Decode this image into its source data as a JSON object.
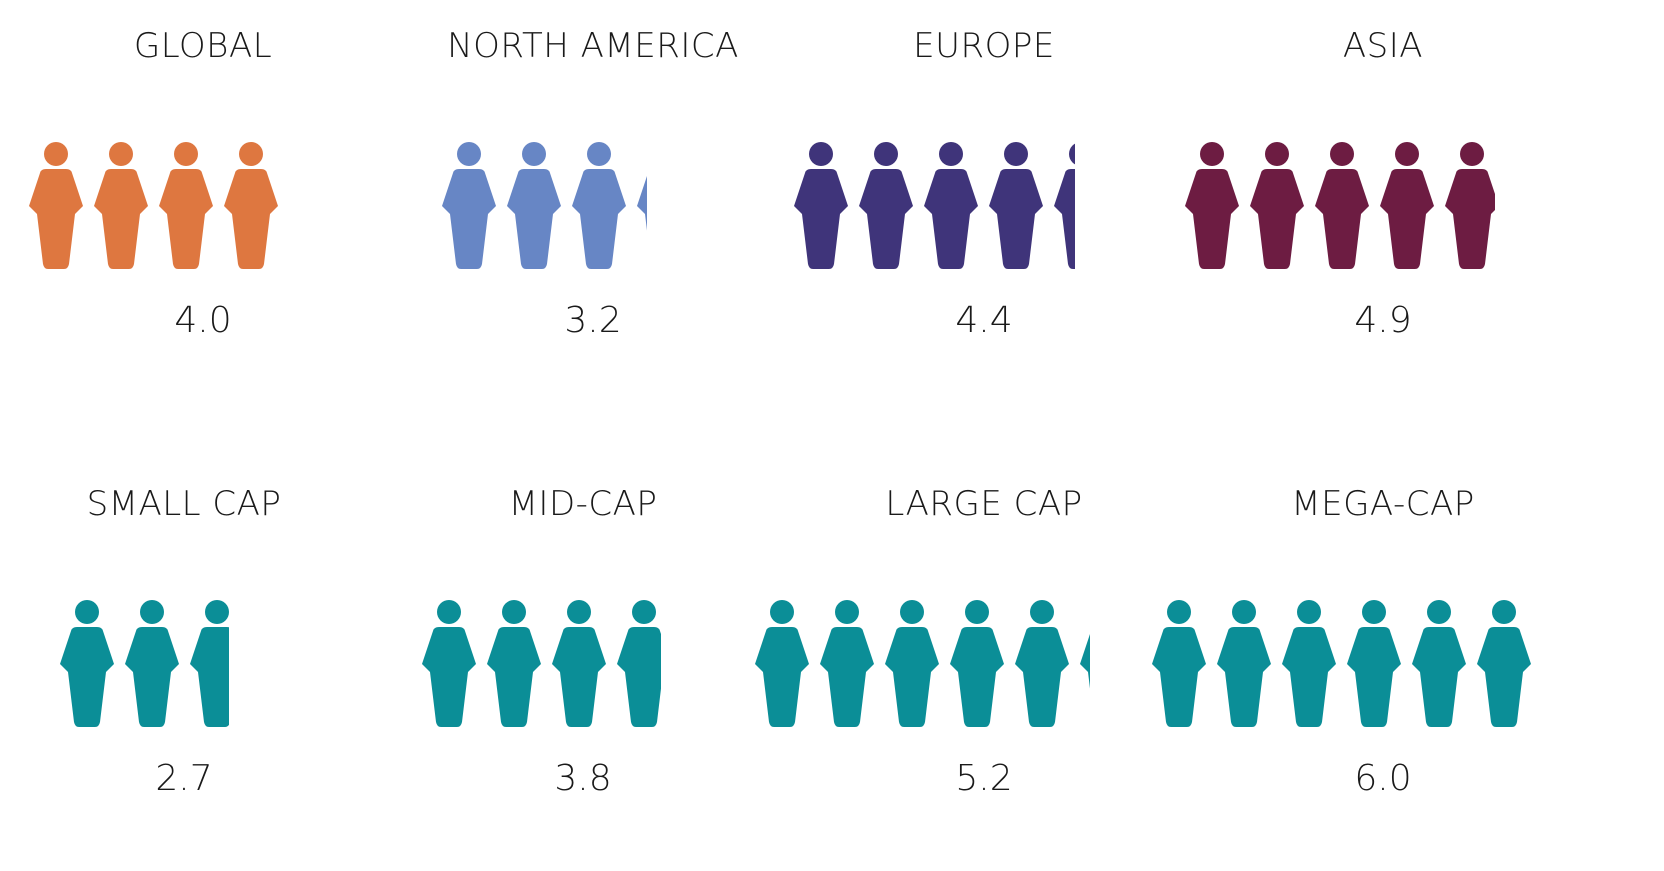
{
  "chart_data": {
    "type": "pictogram",
    "panels": [
      {
        "label": "GLOBAL",
        "value": 4.0,
        "value_text": "4.0",
        "color": "#DE7740"
      },
      {
        "label": "NORTH AMERICA",
        "value": 3.2,
        "value_text": "3.2",
        "color": "#6786C5"
      },
      {
        "label": "EUROPE",
        "value": 4.4,
        "value_text": "4.4",
        "color": "#3F347A"
      },
      {
        "label": "ASIA",
        "value": 4.9,
        "value_text": "4.9",
        "color": "#6D1C42"
      },
      {
        "label": "SMALL CAP",
        "value": 2.7,
        "value_text": "2.7",
        "color": "#0B8E97"
      },
      {
        "label": "MID-CAP",
        "value": 3.8,
        "value_text": "3.8",
        "color": "#0B8E97"
      },
      {
        "label": "LARGE CAP",
        "value": 5.2,
        "value_text": "5.2",
        "color": "#0B8E97"
      },
      {
        "label": "MEGA-CAP",
        "value": 6.0,
        "value_text": "6.0",
        "color": "#0B8E97"
      }
    ],
    "icon": "person-icon"
  }
}
